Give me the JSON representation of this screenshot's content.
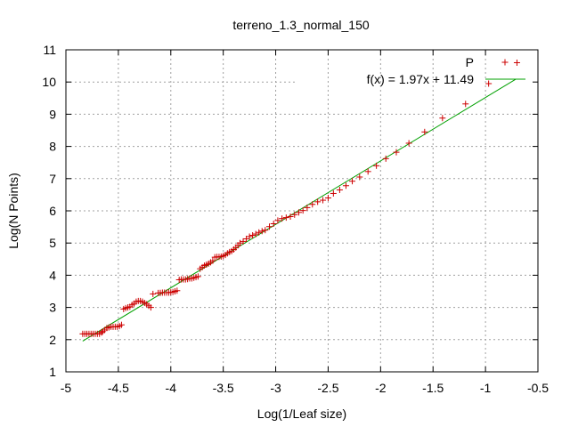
{
  "chart_data": {
    "type": "scatter",
    "title": "terreno_1.3_normal_150",
    "xlabel": "Log(1/Leaf size)",
    "ylabel": "Log(N Points)",
    "xlim": [
      -5,
      -0.5
    ],
    "ylim": [
      1,
      11
    ],
    "xticks": [
      "-5",
      "-4.5",
      "-4",
      "-3.5",
      "-3",
      "-2.5",
      "-2",
      "-1.5",
      "-1",
      "-0.5"
    ],
    "yticks": [
      "1",
      "2",
      "3",
      "4",
      "5",
      "6",
      "7",
      "8",
      "9",
      "10",
      "11"
    ],
    "grid": true,
    "legend_position": "top-right",
    "colors": {
      "points": "#cc0000",
      "fit": "#00a000"
    },
    "series": [
      {
        "name": "P",
        "kind": "points",
        "marker": "+",
        "x": [
          -4.84,
          -4.82,
          -4.8,
          -4.78,
          -4.76,
          -4.74,
          -4.72,
          -4.7,
          -4.68,
          -4.66,
          -4.65,
          -4.63,
          -4.61,
          -4.59,
          -4.57,
          -4.55,
          -4.53,
          -4.51,
          -4.49,
          -4.47,
          -4.45,
          -4.43,
          -4.41,
          -4.39,
          -4.37,
          -4.35,
          -4.33,
          -4.31,
          -4.29,
          -4.27,
          -4.25,
          -4.23,
          -4.21,
          -4.19,
          -4.17,
          -4.12,
          -4.1,
          -4.08,
          -4.06,
          -4.04,
          -4.02,
          -4.0,
          -3.98,
          -3.96,
          -3.94,
          -3.92,
          -3.9,
          -3.88,
          -3.86,
          -3.84,
          -3.82,
          -3.8,
          -3.78,
          -3.76,
          -3.74,
          -3.72,
          -3.7,
          -3.68,
          -3.66,
          -3.64,
          -3.62,
          -3.6,
          -3.58,
          -3.56,
          -3.54,
          -3.52,
          -3.5,
          -3.48,
          -3.46,
          -3.44,
          -3.42,
          -3.4,
          -3.38,
          -3.36,
          -3.34,
          -3.31,
          -3.28,
          -3.25,
          -3.22,
          -3.19,
          -3.16,
          -3.13,
          -3.1,
          -3.06,
          -3.02,
          -2.98,
          -2.94,
          -2.9,
          -2.86,
          -2.82,
          -2.78,
          -2.74,
          -2.7,
          -2.65,
          -2.6,
          -2.55,
          -2.5,
          -2.45,
          -2.39,
          -2.33,
          -2.27,
          -2.2,
          -2.12,
          -2.04,
          -1.95,
          -1.85,
          -1.73,
          -1.58,
          -1.41,
          -1.19,
          -0.97,
          -0.7
        ],
        "y": [
          2.18,
          2.18,
          2.18,
          2.18,
          2.18,
          2.18,
          2.18,
          2.18,
          2.18,
          2.22,
          2.25,
          2.3,
          2.36,
          2.38,
          2.4,
          2.4,
          2.4,
          2.4,
          2.42,
          2.46,
          2.95,
          2.98,
          3.0,
          3.02,
          3.08,
          3.12,
          3.18,
          3.2,
          3.2,
          3.18,
          3.14,
          3.1,
          3.05,
          3.0,
          3.42,
          3.45,
          3.45,
          3.46,
          3.46,
          3.46,
          3.46,
          3.47,
          3.48,
          3.5,
          3.52,
          3.86,
          3.87,
          3.87,
          3.87,
          3.88,
          3.9,
          3.9,
          3.92,
          3.94,
          3.96,
          4.2,
          4.25,
          4.3,
          4.33,
          4.36,
          4.4,
          4.45,
          4.56,
          4.57,
          4.57,
          4.58,
          4.6,
          4.63,
          4.68,
          4.72,
          4.75,
          4.8,
          4.86,
          4.93,
          5.0,
          5.05,
          5.13,
          5.2,
          5.24,
          5.28,
          5.33,
          5.37,
          5.4,
          5.51,
          5.6,
          5.7,
          5.76,
          5.79,
          5.82,
          5.88,
          5.95,
          6.01,
          6.1,
          6.2,
          6.28,
          6.33,
          6.4,
          6.54,
          6.65,
          6.78,
          6.92,
          7.05,
          7.22,
          7.4,
          7.62,
          7.82,
          8.1,
          8.45,
          8.88,
          9.32,
          9.95,
          10.6
        ]
      },
      {
        "name": "f(x) = 1.97x + 11.49",
        "kind": "line",
        "slope": 1.97,
        "intercept": 11.49,
        "x_range": [
          -4.84,
          -0.71
        ]
      }
    ]
  }
}
